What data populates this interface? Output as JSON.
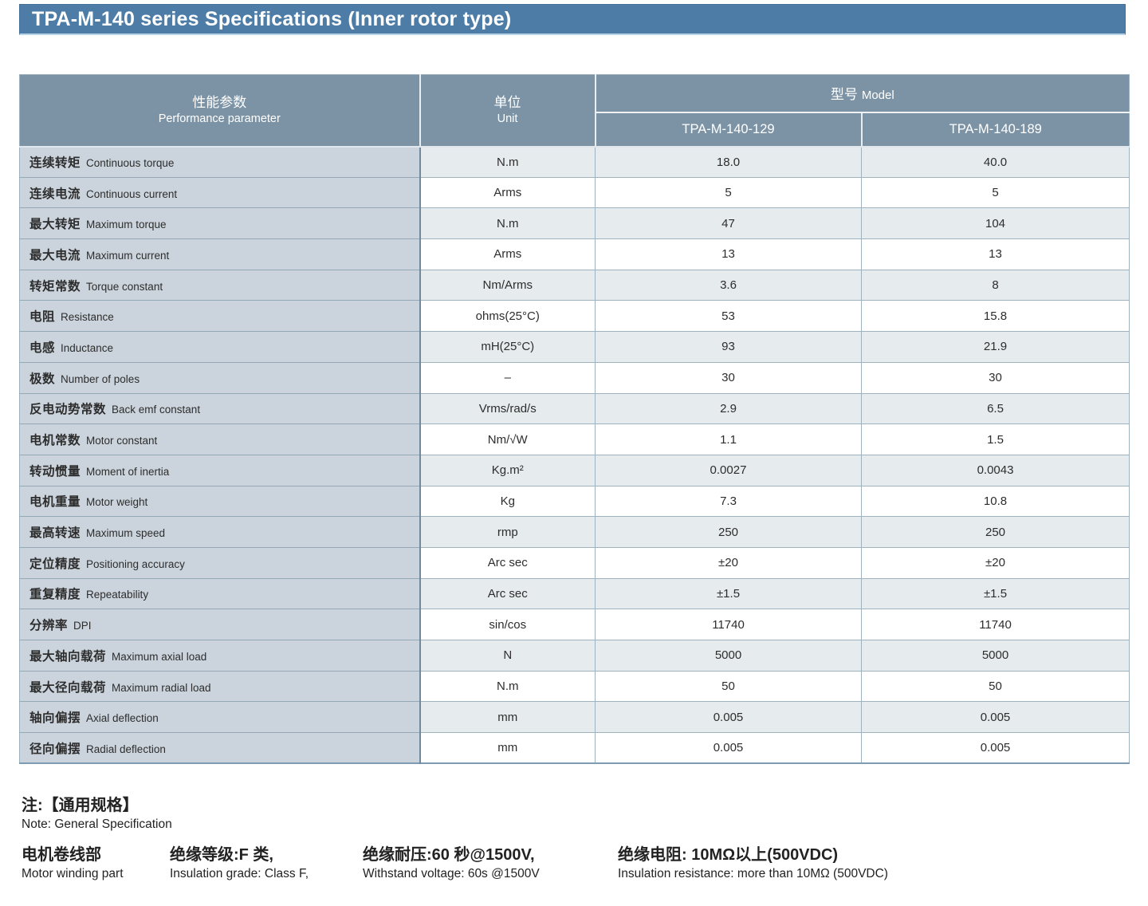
{
  "title": "TPA-M-140 series Specifications (Inner rotor type)",
  "colors": {
    "title_bar": "#4d7ca6",
    "table_header": "#7b93a5",
    "parameter_column": "#cbd4dc",
    "row_alternate": "#e6ebee"
  },
  "table": {
    "header": {
      "param_zh": "性能参数",
      "param_en": "Performance parameter",
      "unit_zh": "单位",
      "unit_en": "Unit",
      "model_zh": "型号",
      "model_en": "Model",
      "models": [
        "TPA-M-140-129",
        "TPA-M-140-189"
      ]
    },
    "rows": [
      {
        "zh": "连续转矩",
        "en": "Continuous torque",
        "unit": "N.m",
        "v1": "18.0",
        "v2": "40.0"
      },
      {
        "zh": "连续电流",
        "en": "Continuous current",
        "unit": "Arms",
        "v1": "5",
        "v2": "5"
      },
      {
        "zh": "最大转矩",
        "en": "Maximum torque",
        "unit": "N.m",
        "v1": "47",
        "v2": "104"
      },
      {
        "zh": "最大电流",
        "en": "Maximum current",
        "unit": "Arms",
        "v1": "13",
        "v2": "13"
      },
      {
        "zh": "转矩常数",
        "en": "Torque constant",
        "unit": "Nm/Arms",
        "v1": "3.6",
        "v2": "8"
      },
      {
        "zh": "电阻",
        "en": "Resistance",
        "unit": "ohms(25°C)",
        "v1": "53",
        "v2": "15.8"
      },
      {
        "zh": "电感",
        "en": "Inductance",
        "unit": "mH(25°C)",
        "v1": "93",
        "v2": "21.9"
      },
      {
        "zh": "极数",
        "en": "Number of poles",
        "unit": "–",
        "v1": "30",
        "v2": "30"
      },
      {
        "zh": "反电动势常数",
        "en": "Back emf constant",
        "unit": "Vrms/rad/s",
        "v1": "2.9",
        "v2": "6.5"
      },
      {
        "zh": "电机常数",
        "en": "Motor constant",
        "unit": "Nm/√W",
        "v1": "1.1",
        "v2": "1.5"
      },
      {
        "zh": "转动惯量",
        "en": "Moment of inertia",
        "unit": "Kg.m²",
        "v1": "0.0027",
        "v2": "0.0043"
      },
      {
        "zh": "电机重量",
        "en": "Motor weight",
        "unit": "Kg",
        "v1": "7.3",
        "v2": "10.8"
      },
      {
        "zh": "最高转速",
        "en": "Maximum speed",
        "unit": "rmp",
        "v1": "250",
        "v2": "250"
      },
      {
        "zh": "定位精度",
        "en": "Positioning accuracy",
        "unit": "Arc sec",
        "v1": "±20",
        "v2": "±20"
      },
      {
        "zh": "重复精度",
        "en": "Repeatability",
        "unit": "Arc sec",
        "v1": "±1.5",
        "v2": "±1.5"
      },
      {
        "zh": "分辨率",
        "en": "DPI",
        "unit": "sin/cos",
        "v1": "11740",
        "v2": "11740"
      },
      {
        "zh": "最大轴向载荷",
        "en": "Maximum axial load",
        "unit": "N",
        "v1": "5000",
        "v2": "5000"
      },
      {
        "zh": "最大径向载荷",
        "en": "Maximum radial load",
        "unit": "N.m",
        "v1": "50",
        "v2": "50"
      },
      {
        "zh": "轴向偏摆",
        "en": "Axial deflection",
        "unit": "mm",
        "v1": "0.005",
        "v2": "0.005"
      },
      {
        "zh": "径向偏摆",
        "en": "Radial deflection",
        "unit": "mm",
        "v1": "0.005",
        "v2": "0.005"
      }
    ]
  },
  "notes": {
    "title_zh": "注:【通用规格】",
    "title_en": "Note: General Specification",
    "items": [
      {
        "zh": "电机卷线部",
        "en": "Motor winding part"
      },
      {
        "zh": "绝缘等级:F 类,",
        "en": "Insulation grade: Class F,"
      },
      {
        "zh": "绝缘耐压:60 秒@1500V,",
        "en": "Withstand voltage: 60s @1500V"
      },
      {
        "zh": "绝缘电阻: 10MΩ以上(500VDC)",
        "en": "Insulation resistance: more than 10MΩ (500VDC)"
      }
    ]
  }
}
